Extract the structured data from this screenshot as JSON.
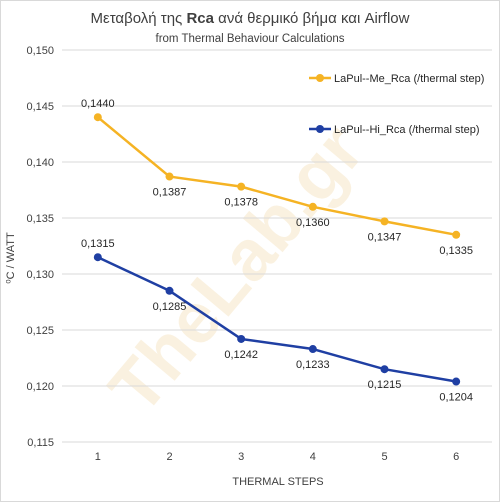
{
  "chart_data": {
    "type": "line",
    "title_prefix": "Μεταβολή της ",
    "title_bold": "Rca",
    "title_suffix": " ανά θερμικό βήμα και  Airflow",
    "subtitle": "from Thermal Behaviour Calculations",
    "xlabel": "THERMAL  STEPS",
    "ylabel": "⁰C / WATT",
    "categories": [
      "1",
      "2",
      "3",
      "4",
      "5",
      "6"
    ],
    "ylim": [
      0.115,
      0.15
    ],
    "yticks": [
      "0,115",
      "0,120",
      "0,125",
      "0,130",
      "0,135",
      "0,140",
      "0,145",
      "0,150"
    ],
    "grid": true,
    "legend_position": "right",
    "watermark": "TheLab.gr",
    "series": [
      {
        "name": "LaPul--Me_Rca (/thermal step)",
        "color": "#f5b324",
        "values": [
          0.144,
          0.1387,
          0.1378,
          0.136,
          0.1347,
          0.1335
        ],
        "labels": [
          "0,1440",
          "0,1387",
          "0,1378",
          "0,1360",
          "0,1347",
          "0,1335"
        ]
      },
      {
        "name": "LaPul--Hi_Rca (/thermal step)",
        "color": "#1f3fa3",
        "values": [
          0.1315,
          0.1285,
          0.1242,
          0.1233,
          0.1215,
          0.1204
        ],
        "labels": [
          "0,1315",
          "0,1285",
          "0,1242",
          "0,1233",
          "0,1215",
          "0,1204"
        ]
      }
    ]
  }
}
